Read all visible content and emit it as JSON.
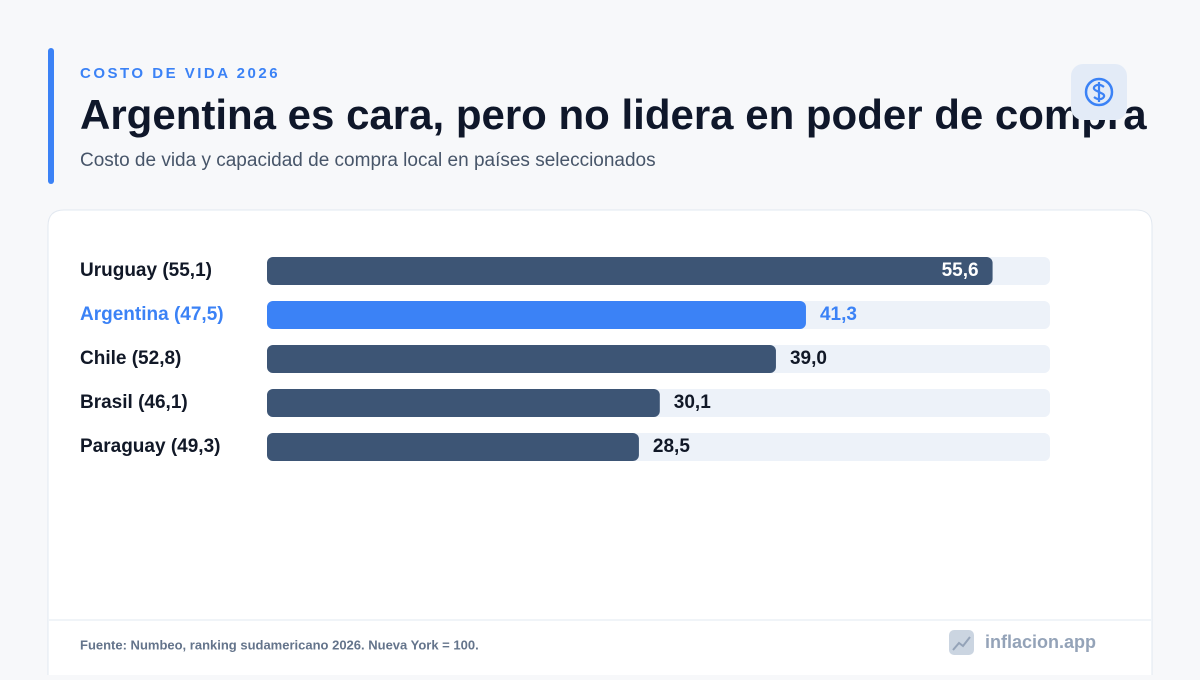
{
  "chart_data": {
    "type": "bar",
    "orientation": "horizontal",
    "kicker": "COSTO DE VIDA 2026",
    "title": "Argentina es cara, pero no lidera en poder de compra",
    "subtitle": "Costo de vida y capacidad de compra local en países seleccionados",
    "categories": [
      "Uruguay (55,1)",
      "Argentina (47,5)",
      "Chile (52,8)",
      "Brasil (46,1)",
      "Paraguay (49,3)"
    ],
    "values": [
      55.6,
      41.3,
      39.0,
      30.1,
      28.5
    ],
    "value_labels": [
      "55,6",
      "41,3",
      "39,0",
      "30,1",
      "28,5"
    ],
    "color": "#3d5575",
    "colors": [
      "#3d5575",
      "#3b82f6",
      "#3d5575",
      "#3d5575",
      "#3d5575"
    ],
    "xlim": [
      0,
      60
    ],
    "source": "Fuente: Numbeo, ranking sudamericano 2026. Nueva York = 100.",
    "brand": "inflacion.app"
  }
}
